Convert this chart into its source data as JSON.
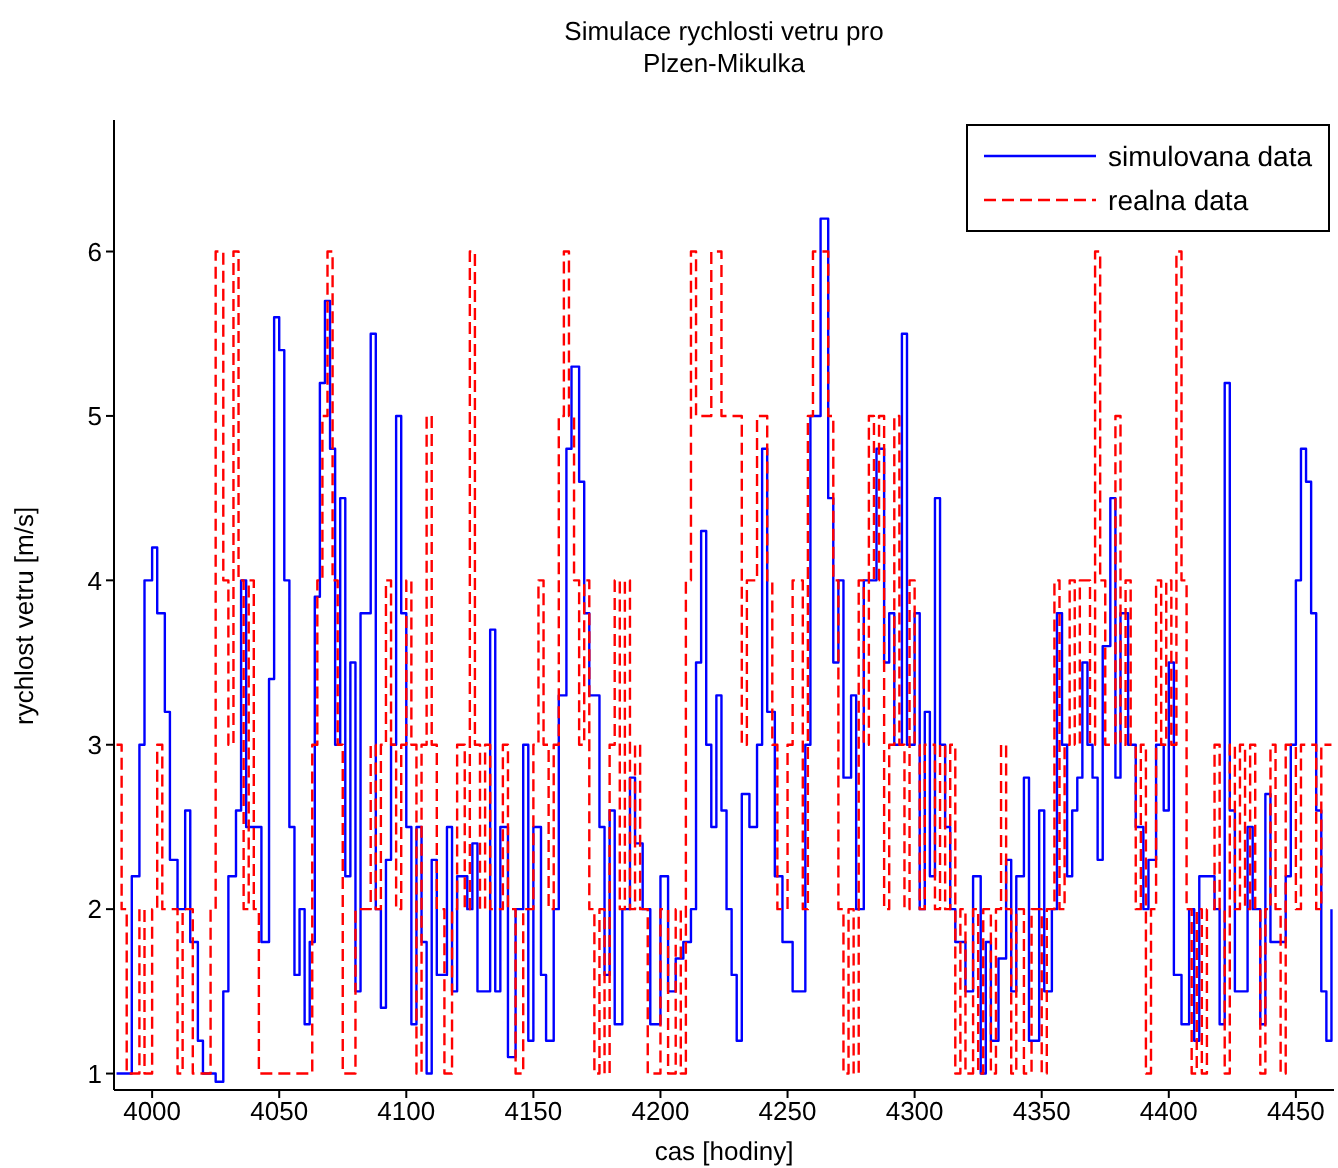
{
  "chart_data": {
    "type": "step",
    "title": "Simulace rychlosti vetru pro\nPlzen-Mikulka",
    "xlabel": "cas [hodiny]",
    "ylabel": "rychlost vetru [m/s]",
    "xlim": [
      3985,
      4465
    ],
    "ylim": [
      0.9,
      6.8
    ],
    "xticks": [
      4000,
      4050,
      4100,
      4150,
      4200,
      4250,
      4300,
      4350,
      4400,
      4450
    ],
    "yticks": [
      1,
      2,
      3,
      4,
      5,
      6
    ],
    "legend": "top right",
    "marker": "none",
    "series": [
      {
        "name": "simulovana data",
        "color": "#0000ff",
        "line_style": "solid",
        "x": [
          3986,
          3990,
          3992,
          3995,
          3997,
          4000,
          4002,
          4005,
          4007,
          4010,
          4013,
          4015,
          4018,
          4020,
          4025,
          4028,
          4030,
          4033,
          4035,
          4037,
          4040,
          4043,
          4046,
          4048,
          4050,
          4052,
          4054,
          4056,
          4058,
          4060,
          4062,
          4064,
          4066,
          4068,
          4070,
          4072,
          4074,
          4076,
          4078,
          4080,
          4082,
          4084,
          4086,
          4088,
          4090,
          4092,
          4094,
          4096,
          4098,
          4100,
          4102,
          4104,
          4106,
          4108,
          4110,
          4112,
          4116,
          4118,
          4120,
          4122,
          4124,
          4126,
          4128,
          4130,
          4133,
          4135,
          4137,
          4140,
          4143,
          4146,
          4148,
          4150,
          4153,
          4155,
          4158,
          4160,
          4163,
          4165,
          4168,
          4170,
          4172,
          4174,
          4176,
          4178,
          4180,
          4182,
          4185,
          4188,
          4190,
          4193,
          4196,
          4198,
          4200,
          4203,
          4206,
          4209,
          4212,
          4214,
          4216,
          4218,
          4220,
          4222,
          4224,
          4226,
          4228,
          4230,
          4232,
          4235,
          4238,
          4240,
          4242,
          4245,
          4248,
          4250,
          4252,
          4255,
          4257,
          4259,
          4261,
          4263,
          4266,
          4268,
          4270,
          4272,
          4275,
          4277,
          4280,
          4282,
          4285,
          4288,
          4290,
          4292,
          4295,
          4297,
          4300,
          4302,
          4304,
          4306,
          4308,
          4310,
          4312,
          4314,
          4316,
          4318,
          4320,
          4323,
          4326,
          4328,
          4330,
          4333,
          4336,
          4338,
          4340,
          4343,
          4345,
          4347,
          4349,
          4351,
          4354,
          4356,
          4358,
          4360,
          4362,
          4364,
          4366,
          4368,
          4370,
          4372,
          4374,
          4377,
          4379,
          4381,
          4384,
          4387,
          4390,
          4392,
          4395,
          4398,
          4400,
          4402,
          4405,
          4408,
          4410,
          4412,
          4414,
          4418,
          4420,
          4422,
          4424,
          4426,
          4428,
          4431,
          4433,
          4436,
          4438,
          4440,
          4443,
          4446,
          4448,
          4450,
          4452,
          4454,
          4456,
          4458,
          4460,
          4462,
          4464
        ],
        "values": [
          1.0,
          1.0,
          2.2,
          3.0,
          4.0,
          4.2,
          3.8,
          3.2,
          2.3,
          2.0,
          2.6,
          1.8,
          1.2,
          1.0,
          0.95,
          1.5,
          2.2,
          2.6,
          4.0,
          2.5,
          null,
          1.8,
          3.4,
          5.6,
          5.4,
          4.0,
          2.5,
          1.6,
          2.0,
          1.3,
          1.8,
          3.9,
          5.2,
          5.7,
          4.8,
          3.0,
          4.5,
          2.2,
          3.5,
          1.5,
          3.8,
          null,
          5.5,
          2.0,
          1.4,
          2.3,
          3.0,
          5.0,
          3.8,
          2.5,
          1.3,
          2.5,
          1.8,
          1.0,
          2.3,
          1.6,
          2.5,
          1.5,
          2.2,
          null,
          2.0,
          2.4,
          1.5,
          null,
          3.7,
          1.5,
          2.5,
          1.1,
          2.0,
          3.0,
          1.2,
          2.5,
          1.6,
          1.2,
          2.0,
          3.3,
          4.8,
          5.3,
          4.6,
          3.8,
          3.3,
          null,
          2.5,
          1.6,
          2.6,
          1.3,
          2.0,
          2.8,
          2.4,
          2.0,
          1.3,
          null,
          2.2,
          1.5,
          1.7,
          1.8,
          2.0,
          3.5,
          4.3,
          3.0,
          2.5,
          3.3,
          2.6,
          2.0,
          1.6,
          1.2,
          2.7,
          2.5,
          3.0,
          4.8,
          3.2,
          2.2,
          1.8,
          null,
          1.5,
          null,
          3.0,
          5.0,
          null,
          6.2,
          4.5,
          3.5,
          4.0,
          2.8,
          3.3,
          2.0,
          4.0,
          null,
          4.8,
          3.5,
          3.8,
          3.0,
          5.5,
          3.0,
          3.8,
          2.0,
          3.2,
          2.2,
          4.5,
          3.0,
          2.5,
          2.0,
          1.8,
          null,
          1.5,
          2.2,
          1.0,
          1.8,
          1.2,
          1.7,
          2.3,
          1.5,
          2.2,
          2.8,
          1.2,
          null,
          2.6,
          1.5,
          2.0,
          3.8,
          3.0,
          2.2,
          2.6,
          2.8,
          3.5,
          3.0,
          2.8,
          2.3,
          3.6,
          4.5,
          2.8,
          3.8,
          3.0,
          2.5,
          2.0,
          2.3,
          3.0,
          2.6,
          3.5,
          1.6,
          1.3,
          2.0,
          1.2,
          2.2,
          null,
          2.0,
          1.3,
          5.2,
          2.6,
          1.5,
          null,
          2.5,
          2.0,
          1.3,
          2.7,
          1.8,
          null,
          2.2,
          3.0,
          4.0,
          4.8,
          4.6,
          3.8,
          2.6,
          1.5,
          1.2,
          2.0
        ]
      },
      {
        "name": "realna data",
        "color": "#ff0000",
        "line_style": "dashed",
        "x": [
          3986,
          3988,
          3990,
          3995,
          3997,
          4000,
          4002,
          4004,
          4010,
          4012,
          4016,
          4023,
          4025,
          4028,
          4030,
          4032,
          4034,
          4036,
          4038,
          4040,
          4042,
          4063,
          4065,
          4067,
          4069,
          4071,
          4073,
          4075,
          4080,
          4086,
          4088,
          4090,
          4092,
          4094,
          4096,
          4098,
          4100,
          4102,
          4104,
          4106,
          4108,
          4110,
          4112,
          4115,
          4118,
          4120,
          4123,
          4125,
          4127,
          4129,
          4131,
          4133,
          4138,
          4140,
          4143,
          4146,
          4150,
          4152,
          4154,
          4156,
          4158,
          4160,
          4162,
          4164,
          4166,
          4168,
          4170,
          4172,
          4174,
          4176,
          4178,
          4180,
          4182,
          4184,
          4186,
          4188,
          4190,
          4192,
          4195,
          4200,
          4203,
          4206,
          4208,
          4210,
          4212,
          4214,
          4216,
          4218,
          4220,
          4222,
          4224,
          4226,
          4228,
          4232,
          4234,
          4236,
          4238,
          4240,
          4242,
          4244,
          4246,
          4250,
          4252,
          4256,
          4258,
          4260,
          4264,
          4266,
          4268,
          4270,
          4272,
          4274,
          4276,
          4278,
          4280,
          4282,
          4284,
          4286,
          4288,
          4290,
          4292,
          4294,
          4296,
          4298,
          4300,
          4302,
          4304,
          4308,
          4310,
          4312,
          4314,
          4316,
          4318,
          4320,
          4323,
          4325,
          4327,
          4330,
          4332,
          4334,
          4336,
          4338,
          4340,
          4343,
          4346,
          4350,
          4352,
          4355,
          4357,
          4359,
          4361,
          4363,
          4365,
          4367,
          4369,
          4371,
          4373,
          4375,
          4377,
          4379,
          4381,
          4383,
          4385,
          4387,
          4389,
          4391,
          4393,
          4395,
          4397,
          4399,
          4401,
          4403,
          4405,
          4407,
          4409,
          4411,
          4413,
          4415,
          4418,
          4420,
          4422,
          4424,
          4426,
          4428,
          4430,
          4432,
          4434,
          4436,
          4438,
          4440,
          4442,
          4444,
          4446,
          4450,
          4452,
          4458,
          4460,
          4464
        ],
        "values": [
          3,
          2,
          1,
          2,
          1,
          2,
          3,
          2,
          1,
          2,
          1,
          2,
          6,
          4,
          3,
          6,
          4,
          2,
          4,
          2,
          1,
          3,
          4,
          5,
          6,
          4,
          3,
          1,
          2,
          3,
          2,
          3,
          4,
          3,
          2,
          3,
          4,
          3,
          1,
          3,
          5,
          3,
          2,
          1,
          2,
          3,
          2,
          6,
          3,
          2,
          3,
          2,
          3,
          2,
          1,
          2,
          3,
          4,
          3,
          2,
          3,
          5,
          6,
          5,
          4,
          3,
          4,
          2,
          1,
          2,
          1,
          3,
          4,
          2,
          4,
          2,
          3,
          2,
          1,
          2,
          1,
          2,
          1,
          4,
          6,
          5,
          null,
          5,
          6,
          null,
          5,
          null,
          5,
          3,
          4,
          null,
          5,
          null,
          4,
          3,
          2,
          3,
          4,
          2,
          5,
          6,
          null,
          5,
          4,
          2,
          1,
          2,
          1,
          4,
          3,
          5,
          4,
          5,
          2,
          3,
          5,
          3,
          2,
          4,
          3,
          2,
          3,
          2,
          3,
          2,
          3,
          1,
          2,
          1,
          2,
          1,
          2,
          1,
          2,
          3,
          2,
          1,
          2,
          1,
          2,
          1,
          2,
          4,
          2,
          3,
          4,
          3,
          4,
          null,
          3,
          6,
          4,
          3,
          null,
          5,
          3,
          4,
          3,
          2,
          3,
          1,
          2,
          4,
          3,
          4,
          3,
          6,
          4,
          2,
          1,
          2,
          1,
          2,
          3,
          2,
          1,
          3,
          2,
          3,
          2,
          3,
          2,
          1,
          2,
          3,
          2,
          1,
          3,
          2,
          3,
          2,
          3,
          3
        ]
      }
    ]
  }
}
